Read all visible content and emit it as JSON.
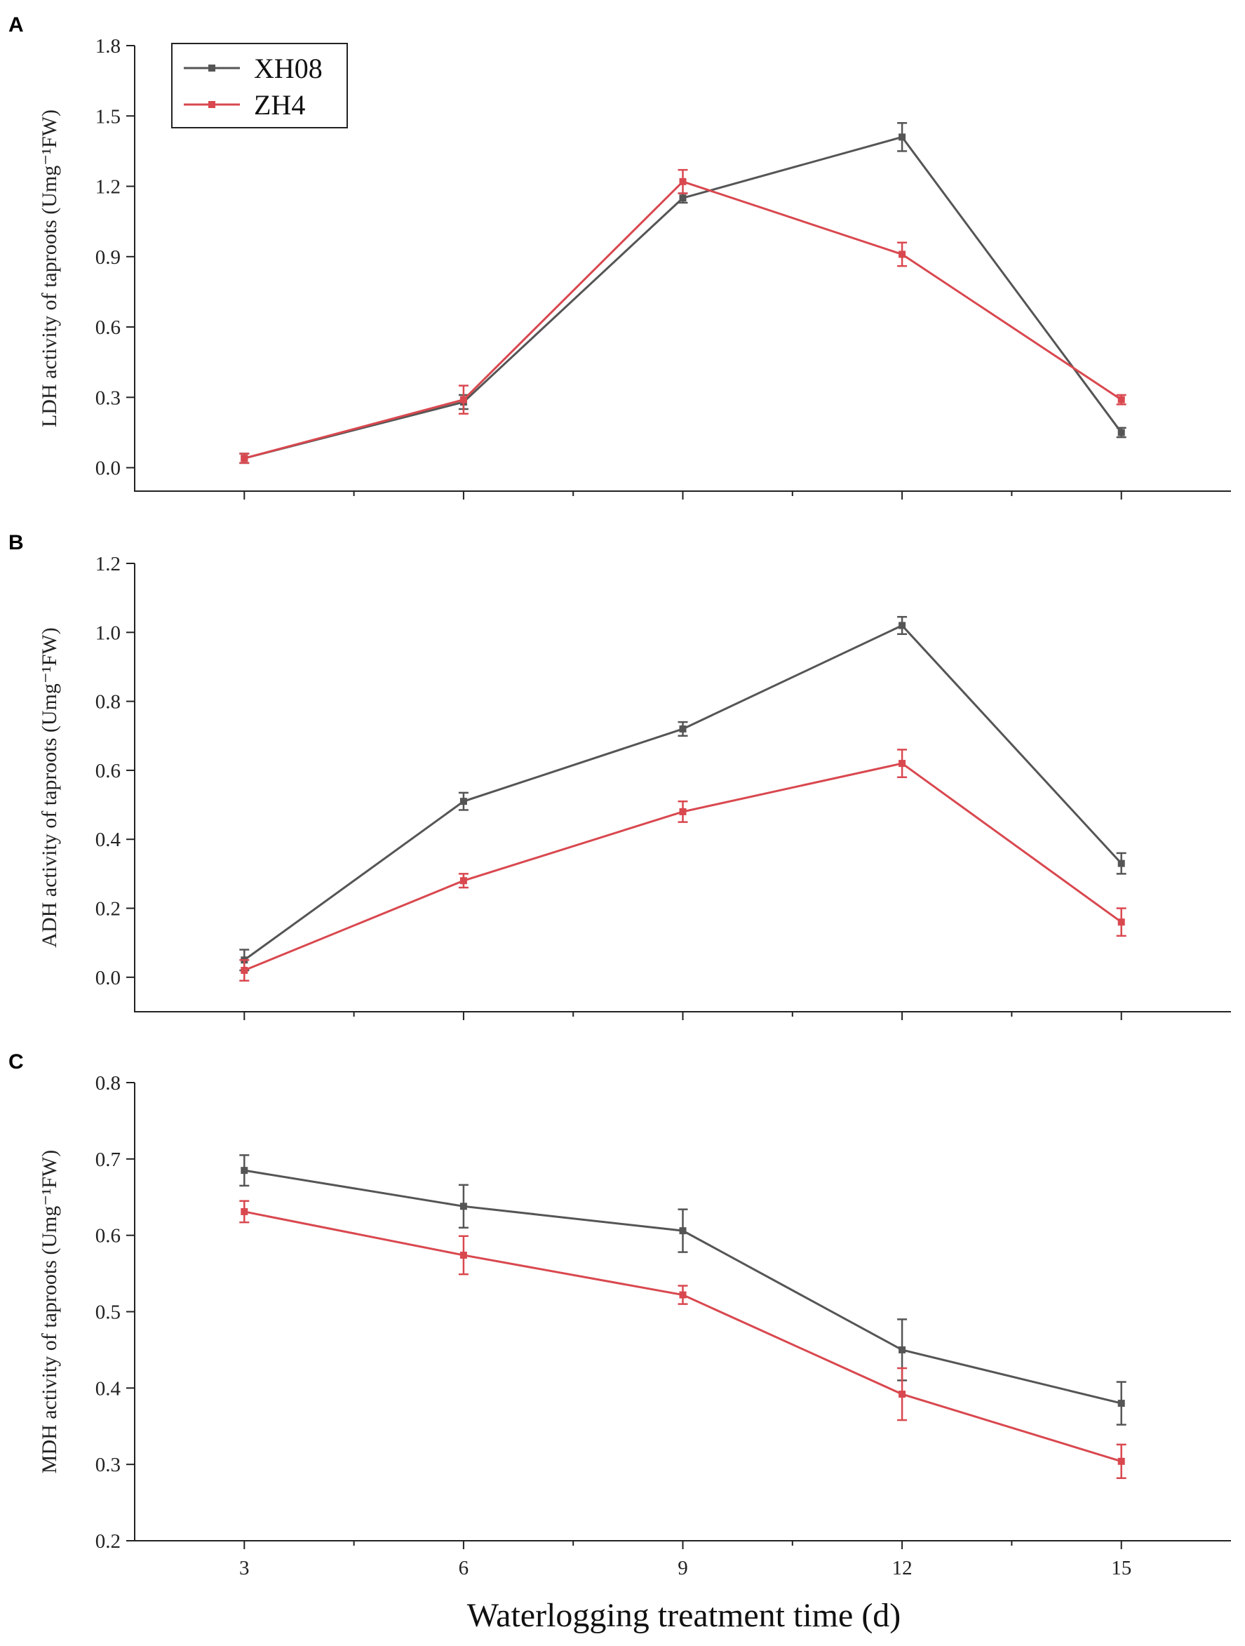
{
  "colors": {
    "XH08": "#555555",
    "ZH4": "#d9484f"
  },
  "legend": [
    {
      "name": "XH08",
      "color": "#555555"
    },
    {
      "name": "ZH4",
      "color": "#d9484f"
    }
  ],
  "xlabel": "Waterlogging treatment time (d)",
  "chart_data": [
    {
      "panel": "A",
      "type": "line",
      "x": [
        3,
        6,
        9,
        12,
        15
      ],
      "xticks": [
        "3",
        "6",
        "9",
        "12",
        "15"
      ],
      "xlim": [
        1.5,
        16.5
      ],
      "ylabel": "LDH activity of taproots (Umg⁻¹FW)",
      "ylim": [
        -0.1,
        1.8
      ],
      "yticks": [
        0.0,
        0.3,
        0.6,
        0.9,
        1.2,
        1.5,
        1.8
      ],
      "ytick_labels": [
        "0.0",
        "0.3",
        "0.6",
        "0.9",
        "1.2",
        "1.5",
        "1.8"
      ],
      "series": [
        {
          "name": "XH08",
          "values": [
            0.04,
            0.28,
            1.15,
            1.41,
            0.15
          ],
          "errors": [
            0.02,
            0.03,
            0.02,
            0.06,
            0.02
          ]
        },
        {
          "name": "ZH4",
          "values": [
            0.04,
            0.29,
            1.22,
            0.91,
            0.29
          ],
          "errors": [
            0.02,
            0.06,
            0.05,
            0.05,
            0.02
          ]
        }
      ]
    },
    {
      "panel": "B",
      "type": "line",
      "x": [
        3,
        6,
        9,
        12,
        15
      ],
      "xticks": [
        "3",
        "6",
        "9",
        "12",
        "15"
      ],
      "xlim": [
        1.5,
        16.5
      ],
      "ylabel": "ADH activity of taproots (Umg⁻¹FW)",
      "ylim": [
        -0.1,
        1.2
      ],
      "yticks": [
        0.0,
        0.2,
        0.4,
        0.6,
        0.8,
        1.0,
        1.2
      ],
      "ytick_labels": [
        "0.0",
        "0.2",
        "0.4",
        "0.6",
        "0.8",
        "1.0",
        "1.2"
      ],
      "series": [
        {
          "name": "XH08",
          "values": [
            0.05,
            0.51,
            0.72,
            1.02,
            0.33
          ],
          "errors": [
            0.03,
            0.025,
            0.02,
            0.025,
            0.03
          ]
        },
        {
          "name": "ZH4",
          "values": [
            0.02,
            0.28,
            0.48,
            0.62,
            0.16
          ],
          "errors": [
            0.03,
            0.02,
            0.03,
            0.04,
            0.04
          ]
        }
      ]
    },
    {
      "panel": "C",
      "type": "line",
      "x": [
        3,
        6,
        9,
        12,
        15
      ],
      "xticks": [
        "3",
        "6",
        "9",
        "12",
        "15"
      ],
      "xlim": [
        1.5,
        16.5
      ],
      "ylabel": "MDH activity of taproots (Umg⁻¹FW)",
      "ylim": [
        0.2,
        0.8
      ],
      "yticks": [
        0.2,
        0.3,
        0.4,
        0.5,
        0.6,
        0.7,
        0.8
      ],
      "ytick_labels": [
        "0.2",
        "0.3",
        "0.4",
        "0.5",
        "0.6",
        "0.7",
        "0.8"
      ],
      "series": [
        {
          "name": "XH08",
          "values": [
            0.685,
            0.638,
            0.606,
            0.45,
            0.38
          ],
          "errors": [
            0.02,
            0.028,
            0.028,
            0.04,
            0.028
          ]
        },
        {
          "name": "ZH4",
          "values": [
            0.631,
            0.574,
            0.522,
            0.392,
            0.304
          ],
          "errors": [
            0.014,
            0.025,
            0.012,
            0.034,
            0.022
          ]
        }
      ]
    }
  ]
}
